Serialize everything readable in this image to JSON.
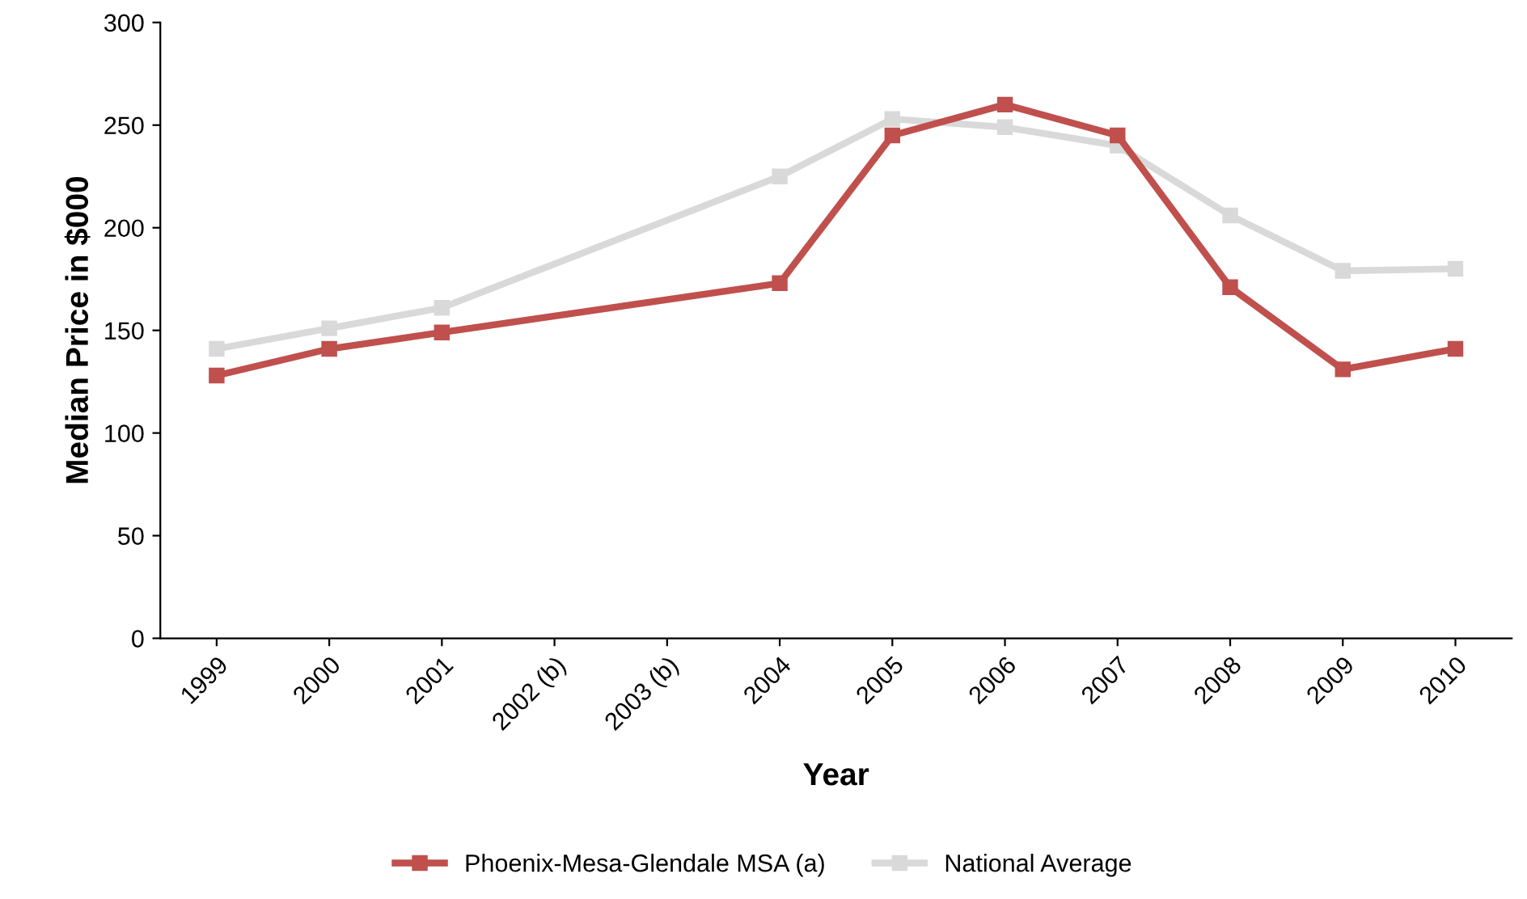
{
  "chart_data": {
    "type": "line",
    "xlabel": "Year",
    "ylabel": "Median Price in $000",
    "categories": [
      "1999",
      "2000",
      "2001",
      "2002 (b)",
      "2003 (b)",
      "2004",
      "2005",
      "2006",
      "2007",
      "2008",
      "2009",
      "2010"
    ],
    "series": [
      {
        "name": "Phoenix-Mesa-Glendale MSA (a)",
        "color": "#c0504d",
        "values": [
          128,
          141,
          149,
          null,
          null,
          173,
          245,
          260,
          245,
          171,
          131,
          141
        ]
      },
      {
        "name": "National Average",
        "color": "#d9d9d9",
        "values": [
          141,
          151,
          161,
          null,
          null,
          225,
          253,
          249,
          240,
          206,
          179,
          180
        ]
      }
    ],
    "ylim": [
      0,
      300
    ],
    "yticks": [
      0,
      50,
      100,
      150,
      200,
      250,
      300
    ],
    "grid": false,
    "legend": "bottom",
    "marker": "square",
    "line_style": "solid"
  }
}
